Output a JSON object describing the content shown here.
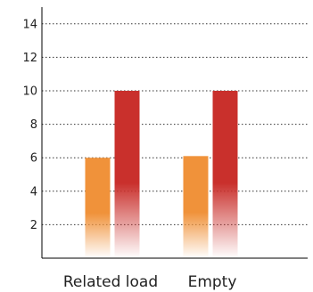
{
  "chart_data": {
    "type": "bar",
    "title": "",
    "xlabel": "",
    "ylabel": "",
    "categories": [
      "Related load",
      "Empty"
    ],
    "series": [
      {
        "values": [
          6.0,
          6.1
        ]
      },
      {
        "values": [
          10.0,
          10.0
        ]
      }
    ],
    "ylim": [
      0,
      15
    ],
    "yticks": [
      2,
      4,
      6,
      8,
      10,
      12,
      14
    ],
    "grid": true,
    "bar_style": "vertical gradient fading to white at the baseline",
    "colors": {
      "series_1": "#f0923a",
      "series_2": "#c9302c",
      "axis": "#000000",
      "grid": "#333333"
    }
  }
}
